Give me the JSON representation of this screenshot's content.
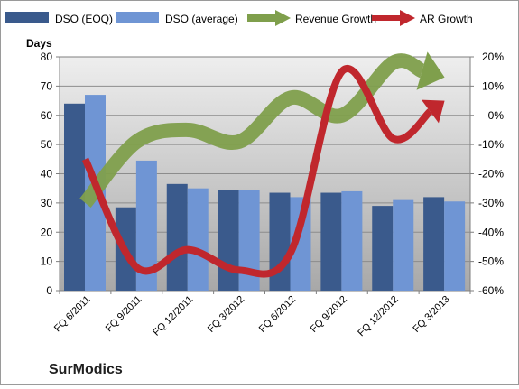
{
  "chart_data": {
    "type": "bar",
    "company": "SurModics",
    "ylabel": "Days",
    "ylim": [
      0,
      80
    ],
    "y_ticks": [
      0,
      10,
      20,
      30,
      40,
      50,
      60,
      70,
      80
    ],
    "y2lim": [
      -60,
      20
    ],
    "y2_ticks": [
      "-60%",
      "-50%",
      "-40%",
      "-30%",
      "-20%",
      "-10%",
      "0%",
      "10%",
      "20%"
    ],
    "y2_values": [
      -60,
      -50,
      -40,
      -30,
      -20,
      -10,
      0,
      10,
      20
    ],
    "categories": [
      "FQ 6/2011",
      "FQ 9/2011",
      "FQ 12/2011",
      "FQ 3/2012",
      "FQ 6/2012",
      "FQ 9/2012",
      "FQ 12/2012",
      "FQ 3/2013"
    ],
    "series": [
      {
        "name": "DSO (EOQ)",
        "kind": "bar",
        "axis": "left",
        "color": "#3a5a8c",
        "values": [
          64,
          28.5,
          36.5,
          34.5,
          33.5,
          33.5,
          29,
          32
        ]
      },
      {
        "name": "DSO (average)",
        "kind": "bar",
        "axis": "left",
        "color": "#6f95d4",
        "values": [
          67,
          44.5,
          35,
          34.5,
          32,
          34,
          31,
          30.5
        ]
      },
      {
        "name": "Revenue Growth",
        "kind": "line-arrow",
        "axis": "right",
        "color": "#7f9f4c",
        "values": [
          -30,
          -9,
          -5,
          -9,
          6,
          0,
          18,
          13
        ]
      },
      {
        "name": "AR Growth",
        "kind": "line-arrow",
        "axis": "right",
        "color": "#c0272d",
        "values": [
          -15,
          -52,
          -46,
          -53,
          -47,
          15,
          -8,
          5
        ]
      }
    ],
    "legend": "top",
    "grid": true
  }
}
